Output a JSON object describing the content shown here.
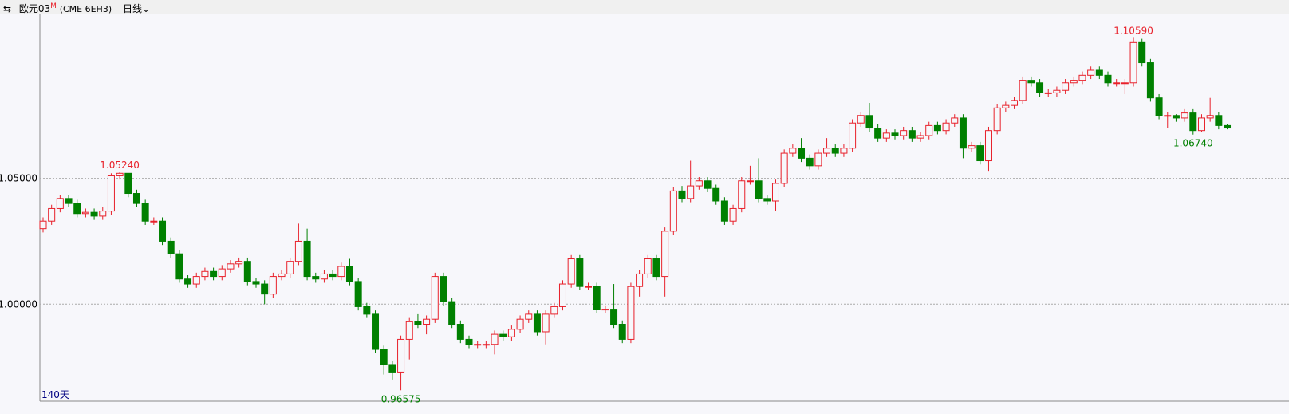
{
  "chart_data": {
    "type": "candlestick",
    "title": "欧元03",
    "title_mark": "M",
    "subtitle": "(CME 6EH3)",
    "period": "日线",
    "range_label": "140天",
    "up_color": "#e8202a",
    "down_color": "#008000",
    "ylim": [
      0.9614,
      1.1152
    ],
    "yticks": [
      {
        "value": 1.0,
        "label": "1.00000"
      },
      {
        "value": 1.05,
        "label": "1.05000"
      }
    ],
    "grid": true,
    "high_labels": [
      {
        "value": 1.0524,
        "label": "1.05240"
      },
      {
        "value": 1.1059,
        "label": "1.10590"
      }
    ],
    "low_labels": [
      {
        "value": 0.96575,
        "label": "0.96575"
      },
      {
        "value": 1.0674,
        "label": "1.06740"
      }
    ],
    "open": [
      1.03,
      1.033,
      1.038,
      1.042,
      1.04,
      1.036,
      1.0365,
      1.035,
      1.037,
      1.051,
      1.052,
      1.044,
      1.04,
      1.033,
      1.033,
      1.025,
      1.02,
      1.01,
      1.008,
      1.011,
      1.013,
      1.011,
      1.014,
      1.016,
      1.017,
      1.009,
      1.008,
      1.004,
      1.011,
      1.012,
      1.017,
      1.025,
      1.011,
      1.01,
      1.012,
      1.011,
      1.015,
      1.009,
      0.999,
      0.996,
      0.982,
      0.976,
      0.973,
      0.986,
      0.993,
      0.992,
      0.994,
      1.011,
      1.001,
      0.992,
      0.986,
      0.984,
      0.984,
      0.984,
      0.988,
      0.987,
      0.99,
      0.994,
      0.996,
      0.989,
      0.996,
      0.999,
      1.008,
      1.018,
      1.007,
      1.007,
      0.998,
      0.998,
      0.992,
      0.986,
      1.007,
      1.012,
      1.018,
      1.011,
      1.029,
      1.045,
      1.042,
      1.047,
      1.049,
      1.046,
      1.041,
      1.033,
      1.038,
      1.049,
      1.049,
      1.042,
      1.041,
      1.048,
      1.06,
      1.062,
      1.058,
      1.055,
      1.06,
      1.062,
      1.06,
      1.062,
      1.072,
      1.075,
      1.07,
      1.066,
      1.068,
      1.067,
      1.069,
      1.066,
      1.067,
      1.071,
      1.069,
      1.072,
      1.074,
      1.062,
      1.063,
      1.057,
      1.069,
      1.078,
      1.079,
      1.081,
      1.089,
      1.088,
      1.084,
      1.084,
      1.085,
      1.088,
      1.089,
      1.091,
      1.093,
      1.091,
      1.088,
      1.088,
      1.088,
      1.104,
      1.096,
      1.082,
      1.075,
      1.075,
      1.074,
      1.076,
      1.069,
      1.074,
      1.075,
      1.071
    ],
    "high": [
      1.0345,
      1.0395,
      1.0435,
      1.0435,
      1.0415,
      1.038,
      1.038,
      1.0385,
      1.052,
      1.0524,
      1.052,
      1.0455,
      1.0415,
      1.0345,
      1.0345,
      1.0265,
      1.0215,
      1.0115,
      1.0125,
      1.0145,
      1.0145,
      1.0155,
      1.0175,
      1.0185,
      1.0185,
      1.0105,
      1.0095,
      1.0125,
      1.0135,
      1.0185,
      1.032,
      1.03,
      1.0125,
      1.0135,
      1.0135,
      1.0165,
      1.018,
      1.0105,
      1.0005,
      0.9975,
      0.9835,
      0.9775,
      0.9875,
      0.9945,
      0.996,
      0.9955,
      1.0125,
      1.0125,
      1.0025,
      0.9935,
      0.9875,
      0.9855,
      0.9855,
      0.9895,
      0.9895,
      0.9915,
      0.9955,
      0.9975,
      0.9975,
      0.9975,
      1.0005,
      1.0095,
      1.0195,
      1.0195,
      1.0085,
      1.0085,
      0.9995,
      1.008,
      0.9935,
      1.0085,
      1.0135,
      1.0195,
      1.0195,
      1.0305,
      1.0465,
      1.047,
      1.057,
      1.0505,
      1.0505,
      1.0475,
      1.0425,
      1.0395,
      1.0505,
      1.055,
      1.058,
      1.0435,
      1.0495,
      1.0615,
      1.0635,
      1.066,
      1.0595,
      1.0615,
      1.066,
      1.0635,
      1.0635,
      1.0735,
      1.0765,
      1.08,
      1.0715,
      1.0695,
      1.0695,
      1.0705,
      1.0705,
      1.0685,
      1.0725,
      1.0725,
      1.0735,
      1.0755,
      1.0755,
      1.0645,
      1.0645,
      1.0705,
      1.0795,
      1.0805,
      1.0825,
      1.0905,
      1.0905,
      1.0895,
      1.0855,
      1.0865,
      1.0895,
      1.0905,
      1.0925,
      1.0945,
      1.0945,
      1.0925,
      1.0895,
      1.0895,
      1.1059,
      1.1055,
      1.0975,
      1.0835,
      1.0765,
      1.0755,
      1.0775,
      1.0775,
      1.0755,
      1.082,
      1.0765,
      1.0715
    ],
    "low": [
      1.0285,
      1.0315,
      1.0365,
      1.0385,
      1.0345,
      1.0345,
      1.0335,
      1.0335,
      1.0355,
      1.0495,
      1.0425,
      1.0385,
      1.0315,
      1.0315,
      1.0235,
      1.0185,
      1.0085,
      1.0065,
      1.0065,
      1.0095,
      1.0095,
      1.0095,
      1.0125,
      1.0145,
      1.0075,
      1.0065,
      1.0,
      1.0025,
      1.0095,
      1.0105,
      1.0155,
      1.0095,
      1.0085,
      1.0085,
      1.0095,
      1.0095,
      1.0075,
      0.9975,
      0.9945,
      0.9805,
      0.972,
      0.97,
      0.96575,
      0.978,
      0.9905,
      0.988,
      0.9925,
      0.9995,
      0.9905,
      0.9845,
      0.9825,
      0.9825,
      0.9825,
      0.98,
      0.9855,
      0.9855,
      0.9885,
      0.9925,
      0.9875,
      0.984,
      0.9945,
      0.9975,
      1.0065,
      1.0055,
      1.0055,
      0.9965,
      0.9965,
      0.9905,
      0.9845,
      0.9845,
      1.003,
      1.0105,
      1.0095,
      1.003,
      1.0275,
      1.0405,
      1.0405,
      1.0455,
      1.0445,
      1.0395,
      1.0315,
      1.0315,
      1.0365,
      1.0475,
      1.0405,
      1.0395,
      1.037,
      1.0465,
      1.0585,
      1.0565,
      1.0535,
      1.0535,
      1.0585,
      1.0585,
      1.0585,
      1.0605,
      1.0705,
      1.0685,
      1.0645,
      1.0645,
      1.0655,
      1.0655,
      1.0645,
      1.0645,
      1.0655,
      1.0675,
      1.0675,
      1.0705,
      1.058,
      1.0605,
      1.0555,
      1.053,
      1.0675,
      1.0765,
      1.0775,
      1.0795,
      1.0865,
      1.0825,
      1.0825,
      1.0825,
      1.0835,
      1.0865,
      1.0875,
      1.0895,
      1.0895,
      1.0865,
      1.0865,
      1.0835,
      1.0865,
      1.0945,
      1.0805,
      1.0735,
      1.07,
      1.0725,
      1.0725,
      1.0674,
      1.0685,
      1.0725,
      1.0695,
      1.0695
    ],
    "close": [
      1.033,
      1.038,
      1.042,
      1.04,
      1.036,
      1.0365,
      1.035,
      1.037,
      1.051,
      1.052,
      1.044,
      1.04,
      1.033,
      1.033,
      1.025,
      1.02,
      1.01,
      1.008,
      1.011,
      1.013,
      1.011,
      1.014,
      1.016,
      1.017,
      1.009,
      1.008,
      1.004,
      1.011,
      1.012,
      1.017,
      1.025,
      1.011,
      1.01,
      1.012,
      1.011,
      1.015,
      1.009,
      0.999,
      0.996,
      0.982,
      0.976,
      0.973,
      0.986,
      0.993,
      0.992,
      0.994,
      1.011,
      1.001,
      0.992,
      0.986,
      0.984,
      0.984,
      0.984,
      0.988,
      0.987,
      0.99,
      0.994,
      0.996,
      0.989,
      0.996,
      0.999,
      1.008,
      1.018,
      1.007,
      1.007,
      0.998,
      0.998,
      0.992,
      0.986,
      1.007,
      1.012,
      1.018,
      1.011,
      1.029,
      1.045,
      1.042,
      1.047,
      1.049,
      1.046,
      1.041,
      1.033,
      1.038,
      1.049,
      1.049,
      1.042,
      1.041,
      1.048,
      1.06,
      1.062,
      1.058,
      1.055,
      1.06,
      1.062,
      1.06,
      1.062,
      1.072,
      1.075,
      1.07,
      1.066,
      1.068,
      1.067,
      1.069,
      1.066,
      1.067,
      1.071,
      1.069,
      1.072,
      1.074,
      1.062,
      1.063,
      1.057,
      1.069,
      1.078,
      1.079,
      1.081,
      1.089,
      1.088,
      1.084,
      1.084,
      1.085,
      1.088,
      1.089,
      1.091,
      1.093,
      1.091,
      1.088,
      1.088,
      1.088,
      1.104,
      1.096,
      1.082,
      1.075,
      1.075,
      1.074,
      1.076,
      1.069,
      1.074,
      1.075,
      1.071,
      1.07
    ]
  }
}
